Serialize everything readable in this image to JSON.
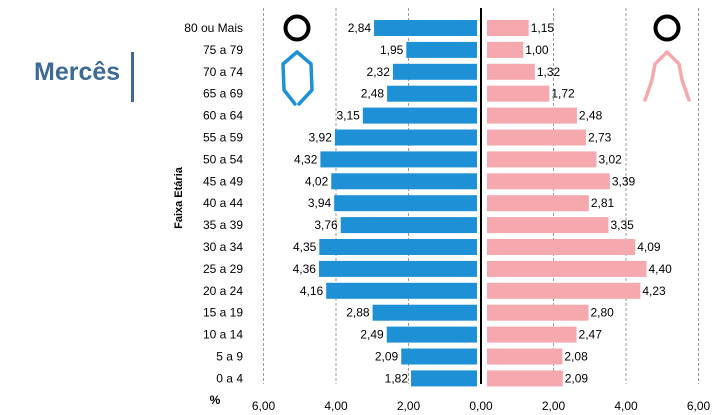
{
  "title": "Mercês",
  "chart_data": {
    "type": "bar",
    "orientation": "horizontal-population-pyramid",
    "ylabel": "Faixa Etária",
    "xlabel": "%",
    "xlim": [
      -6,
      6
    ],
    "x_ticks": [
      "6,00",
      "4,00",
      "2,00",
      "0,00",
      "2,00",
      "4,00",
      "6,00"
    ],
    "categories": [
      "80 ou Mais",
      "75 a 79",
      "70 a 74",
      "65 a 69",
      "60 a 64",
      "55 a 59",
      "50 a 54",
      "45 a 49",
      "40 a 44",
      "35 a 39",
      "30 a 34",
      "25 a 29",
      "20 a 24",
      "15 a 19",
      "10 a 14",
      "5 a 9",
      "0 a 4"
    ],
    "series": [
      {
        "color": "#1e90d6",
        "side": "left",
        "icon": "male-figure-icon",
        "values": [
          2.84,
          1.95,
          2.32,
          2.48,
          3.15,
          3.92,
          4.32,
          4.02,
          3.94,
          3.76,
          4.35,
          4.36,
          4.16,
          2.88,
          2.49,
          2.09,
          1.82
        ],
        "labels": [
          "2,84",
          "1,95",
          "2,32",
          "2,48",
          "3,15",
          "3,92",
          "4,32",
          "4,02",
          "3,94",
          "3,76",
          "4,35",
          "4,36",
          "4,16",
          "2,88",
          "2,49",
          "2,09",
          "1,82"
        ]
      },
      {
        "color": "#f5a8ad",
        "side": "right",
        "icon": "female-figure-icon",
        "values": [
          1.15,
          1.0,
          1.32,
          1.72,
          2.48,
          2.73,
          3.02,
          3.39,
          2.81,
          3.35,
          4.09,
          4.4,
          4.23,
          2.8,
          2.47,
          2.08,
          2.09
        ],
        "labels": [
          "1,15",
          "1,00",
          "1,32",
          "1,72",
          "2,48",
          "2,73",
          "3,02",
          "3,39",
          "2,81",
          "3,35",
          "4,09",
          "4,40",
          "4,23",
          "2,80",
          "2,47",
          "2,08",
          "2,09"
        ]
      }
    ],
    "grid": "vertical-dashed"
  }
}
